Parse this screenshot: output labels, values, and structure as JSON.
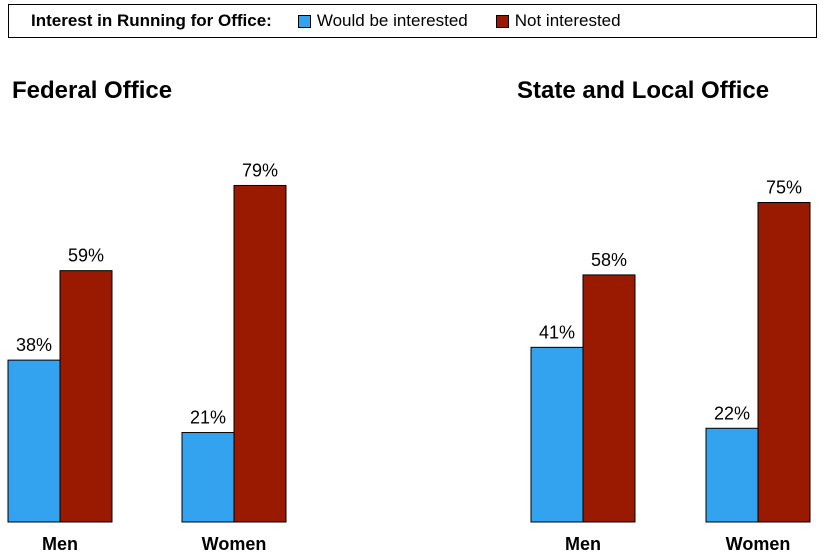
{
  "legend": {
    "title": "Interest in Running for Office:",
    "items": [
      {
        "label": "Would be interested",
        "color": "#33a3f0"
      },
      {
        "label": "Not interested",
        "color": "#991a00"
      }
    ]
  },
  "chart_data": [
    {
      "type": "bar",
      "title": "Federal Office",
      "categories": [
        "Men",
        "Women"
      ],
      "series": [
        {
          "name": "Would be interested",
          "values": [
            38,
            21
          ]
        },
        {
          "name": "Not interested",
          "values": [
            59,
            79
          ]
        }
      ],
      "value_suffix": "%",
      "ylim": [
        0,
        100
      ]
    },
    {
      "type": "bar",
      "title": "State and Local Office",
      "categories": [
        "Men",
        "Women"
      ],
      "series": [
        {
          "name": "Would be interested",
          "values": [
            41,
            22
          ]
        },
        {
          "name": "Not interested",
          "values": [
            58,
            75
          ]
        }
      ],
      "value_suffix": "%",
      "ylim": [
        0,
        100
      ]
    }
  ]
}
